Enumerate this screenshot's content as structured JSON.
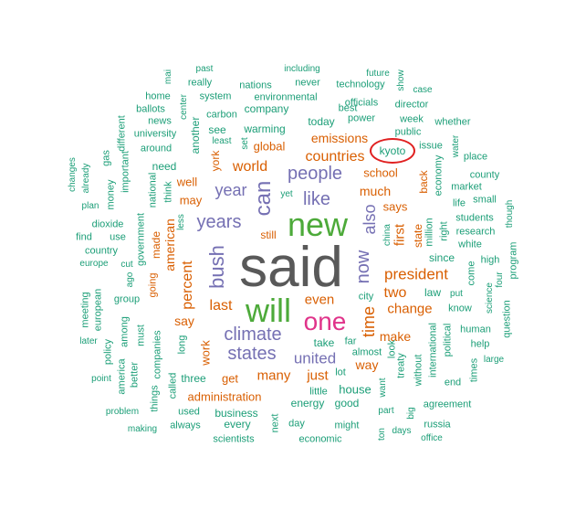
{
  "palette": {
    "gray": "#595959",
    "green": "#4daa3a",
    "magenta": "#e0338a",
    "purple": "#7570b3",
    "orange": "#d95f02",
    "teal": "#1b9e77"
  },
  "highlight": {
    "word": "kyoto",
    "color": "#e02020"
  },
  "words": [
    {
      "text": "said",
      "size": 62,
      "c": "gray"
    },
    {
      "text": "new",
      "size": 36,
      "c": "green"
    },
    {
      "text": "will",
      "size": 36,
      "c": "green"
    },
    {
      "text": "one",
      "size": 28,
      "c": "magenta"
    },
    {
      "text": "can",
      "size": 24,
      "c": "purple"
    },
    {
      "text": "bush",
      "size": 22,
      "c": "purple"
    },
    {
      "text": "years",
      "size": 20,
      "c": "purple"
    },
    {
      "text": "people",
      "size": 20,
      "c": "purple"
    },
    {
      "text": "like",
      "size": 20,
      "c": "purple"
    },
    {
      "text": "climate",
      "size": 20,
      "c": "purple"
    },
    {
      "text": "states",
      "size": 20,
      "c": "purple"
    },
    {
      "text": "now",
      "size": 20,
      "c": "purple"
    },
    {
      "text": "also",
      "size": 18,
      "c": "purple"
    },
    {
      "text": "year",
      "size": 18,
      "c": "purple"
    },
    {
      "text": "united",
      "size": 17,
      "c": "purple"
    },
    {
      "text": "time",
      "size": 18,
      "c": "orange"
    },
    {
      "text": "president",
      "size": 17,
      "c": "orange"
    },
    {
      "text": "countries",
      "size": 16,
      "c": "orange"
    },
    {
      "text": "world",
      "size": 16,
      "c": "orange"
    },
    {
      "text": "percent",
      "size": 16,
      "c": "orange"
    },
    {
      "text": "american",
      "size": 14,
      "c": "orange"
    },
    {
      "text": "last",
      "size": 16,
      "c": "orange"
    },
    {
      "text": "two",
      "size": 16,
      "c": "orange"
    },
    {
      "text": "change",
      "size": 15,
      "c": "orange"
    },
    {
      "text": "many",
      "size": 15,
      "c": "orange"
    },
    {
      "text": "just",
      "size": 15,
      "c": "orange"
    },
    {
      "text": "even",
      "size": 15,
      "c": "orange"
    },
    {
      "text": "first",
      "size": 15,
      "c": "orange"
    },
    {
      "text": "much",
      "size": 14,
      "c": "orange"
    },
    {
      "text": "emissions",
      "size": 14,
      "c": "orange"
    },
    {
      "text": "say",
      "size": 14,
      "c": "orange"
    },
    {
      "text": "make",
      "size": 14,
      "c": "orange"
    },
    {
      "text": "way",
      "size": 14,
      "c": "orange"
    },
    {
      "text": "says",
      "size": 13,
      "c": "orange"
    },
    {
      "text": "well",
      "size": 13,
      "c": "orange"
    },
    {
      "text": "may",
      "size": 13,
      "c": "orange"
    },
    {
      "text": "get",
      "size": 13,
      "c": "orange"
    },
    {
      "text": "work",
      "size": 13,
      "c": "orange"
    },
    {
      "text": "administration",
      "size": 13,
      "c": "orange"
    },
    {
      "text": "school",
      "size": 13,
      "c": "orange"
    },
    {
      "text": "global",
      "size": 13,
      "c": "orange"
    },
    {
      "text": "still",
      "size": 12,
      "c": "orange"
    },
    {
      "text": "back",
      "size": 12,
      "c": "orange"
    },
    {
      "text": "state",
      "size": 12,
      "c": "orange"
    },
    {
      "text": "york",
      "size": 12,
      "c": "orange"
    },
    {
      "text": "made",
      "size": 12,
      "c": "orange"
    },
    {
      "text": "going",
      "size": 11,
      "c": "orange"
    },
    {
      "text": "kyoto",
      "size": 12,
      "c": "teal"
    },
    {
      "text": "warming",
      "size": 12,
      "c": "teal"
    },
    {
      "text": "company",
      "size": 12,
      "c": "teal"
    },
    {
      "text": "today",
      "size": 12,
      "c": "teal"
    },
    {
      "text": "energy",
      "size": 12,
      "c": "teal"
    },
    {
      "text": "house",
      "size": 13,
      "c": "teal"
    },
    {
      "text": "three",
      "size": 12,
      "c": "teal"
    },
    {
      "text": "business",
      "size": 12,
      "c": "teal"
    },
    {
      "text": "every",
      "size": 12,
      "c": "teal"
    },
    {
      "text": "good",
      "size": 12,
      "c": "teal"
    },
    {
      "text": "see",
      "size": 12,
      "c": "teal"
    },
    {
      "text": "need",
      "size": 12,
      "c": "teal"
    },
    {
      "text": "take",
      "size": 12,
      "c": "teal"
    },
    {
      "text": "law",
      "size": 12,
      "c": "teal"
    },
    {
      "text": "since",
      "size": 12,
      "c": "teal"
    },
    {
      "text": "far",
      "size": 11,
      "c": "teal"
    },
    {
      "text": "almost",
      "size": 11,
      "c": "teal"
    },
    {
      "text": "lot",
      "size": 11,
      "c": "teal"
    },
    {
      "text": "little",
      "size": 11,
      "c": "teal"
    },
    {
      "text": "might",
      "size": 11,
      "c": "teal"
    },
    {
      "text": "day",
      "size": 11,
      "c": "teal"
    },
    {
      "text": "economic",
      "size": 11,
      "c": "teal"
    },
    {
      "text": "scientists",
      "size": 11,
      "c": "teal"
    },
    {
      "text": "always",
      "size": 11,
      "c": "teal"
    },
    {
      "text": "used",
      "size": 11,
      "c": "teal"
    },
    {
      "text": "agreement",
      "size": 11,
      "c": "teal"
    },
    {
      "text": "russia",
      "size": 11,
      "c": "teal"
    },
    {
      "text": "office",
      "size": 10,
      "c": "teal"
    },
    {
      "text": "days",
      "size": 10,
      "c": "teal"
    },
    {
      "text": "part",
      "size": 10,
      "c": "teal"
    },
    {
      "text": "end",
      "size": 11,
      "c": "teal"
    },
    {
      "text": "know",
      "size": 11,
      "c": "teal"
    },
    {
      "text": "put",
      "size": 10,
      "c": "teal"
    },
    {
      "text": "human",
      "size": 11,
      "c": "teal"
    },
    {
      "text": "help",
      "size": 11,
      "c": "teal"
    },
    {
      "text": "large",
      "size": 10,
      "c": "teal"
    },
    {
      "text": "high",
      "size": 11,
      "c": "teal"
    },
    {
      "text": "research",
      "size": 11,
      "c": "teal"
    },
    {
      "text": "white",
      "size": 11,
      "c": "teal"
    },
    {
      "text": "students",
      "size": 11,
      "c": "teal"
    },
    {
      "text": "small",
      "size": 11,
      "c": "teal"
    },
    {
      "text": "life",
      "size": 11,
      "c": "teal"
    },
    {
      "text": "market",
      "size": 11,
      "c": "teal"
    },
    {
      "text": "county",
      "size": 11,
      "c": "teal"
    },
    {
      "text": "place",
      "size": 11,
      "c": "teal"
    },
    {
      "text": "issue",
      "size": 11,
      "c": "teal"
    },
    {
      "text": "public",
      "size": 11,
      "c": "teal"
    },
    {
      "text": "week",
      "size": 11,
      "c": "teal"
    },
    {
      "text": "whether",
      "size": 11,
      "c": "teal"
    },
    {
      "text": "director",
      "size": 11,
      "c": "teal"
    },
    {
      "text": "officials",
      "size": 11,
      "c": "teal"
    },
    {
      "text": "case",
      "size": 10,
      "c": "teal"
    },
    {
      "text": "technology",
      "size": 11,
      "c": "teal"
    },
    {
      "text": "future",
      "size": 10,
      "c": "teal"
    },
    {
      "text": "never",
      "size": 11,
      "c": "teal"
    },
    {
      "text": "best",
      "size": 11,
      "c": "teal"
    },
    {
      "text": "power",
      "size": 11,
      "c": "teal"
    },
    {
      "text": "including",
      "size": 10,
      "c": "teal"
    },
    {
      "text": "nations",
      "size": 11,
      "c": "teal"
    },
    {
      "text": "environmental",
      "size": 11,
      "c": "teal"
    },
    {
      "text": "past",
      "size": 10,
      "c": "teal"
    },
    {
      "text": "really",
      "size": 11,
      "c": "teal"
    },
    {
      "text": "system",
      "size": 11,
      "c": "teal"
    },
    {
      "text": "carbon",
      "size": 11,
      "c": "teal"
    },
    {
      "text": "home",
      "size": 11,
      "c": "teal"
    },
    {
      "text": "ballots",
      "size": 11,
      "c": "teal"
    },
    {
      "text": "news",
      "size": 11,
      "c": "teal"
    },
    {
      "text": "university",
      "size": 11,
      "c": "teal"
    },
    {
      "text": "around",
      "size": 11,
      "c": "teal"
    },
    {
      "text": "least",
      "size": 10,
      "c": "teal"
    },
    {
      "text": "yet",
      "size": 10,
      "c": "teal"
    },
    {
      "text": "dioxide",
      "size": 11,
      "c": "teal"
    },
    {
      "text": "find",
      "size": 11,
      "c": "teal"
    },
    {
      "text": "use",
      "size": 11,
      "c": "teal"
    },
    {
      "text": "country",
      "size": 11,
      "c": "teal"
    },
    {
      "text": "europe",
      "size": 10,
      "c": "teal"
    },
    {
      "text": "cut",
      "size": 10,
      "c": "teal"
    },
    {
      "text": "group",
      "size": 11,
      "c": "teal"
    },
    {
      "text": "plan",
      "size": 10,
      "c": "teal"
    },
    {
      "text": "later",
      "size": 10,
      "c": "teal"
    },
    {
      "text": "point",
      "size": 10,
      "c": "teal"
    },
    {
      "text": "problem",
      "size": 10,
      "c": "teal"
    },
    {
      "text": "making",
      "size": 10,
      "c": "teal"
    },
    {
      "text": "city",
      "size": 11,
      "c": "teal"
    },
    {
      "text": "another",
      "size": 12,
      "c": "teal"
    },
    {
      "text": "center",
      "size": 10,
      "c": "teal"
    },
    {
      "text": "set",
      "size": 10,
      "c": "teal"
    },
    {
      "text": "think",
      "size": 11,
      "c": "teal"
    },
    {
      "text": "national",
      "size": 11,
      "c": "teal"
    },
    {
      "text": "less",
      "size": 10,
      "c": "teal"
    },
    {
      "text": "government",
      "size": 11,
      "c": "teal"
    },
    {
      "text": "ago",
      "size": 10,
      "c": "teal"
    },
    {
      "text": "must",
      "size": 11,
      "c": "teal"
    },
    {
      "text": "among",
      "size": 11,
      "c": "teal"
    },
    {
      "text": "money",
      "size": 11,
      "c": "teal"
    },
    {
      "text": "important",
      "size": 11,
      "c": "teal"
    },
    {
      "text": "gas",
      "size": 11,
      "c": "teal"
    },
    {
      "text": "different",
      "size": 11,
      "c": "teal"
    },
    {
      "text": "already",
      "size": 10,
      "c": "teal"
    },
    {
      "text": "changes",
      "size": 10,
      "c": "teal"
    },
    {
      "text": "european",
      "size": 11,
      "c": "teal"
    },
    {
      "text": "meeting",
      "size": 11,
      "c": "teal"
    },
    {
      "text": "policy",
      "size": 11,
      "c": "teal"
    },
    {
      "text": "america",
      "size": 11,
      "c": "teal"
    },
    {
      "text": "better",
      "size": 11,
      "c": "teal"
    },
    {
      "text": "companies",
      "size": 11,
      "c": "teal"
    },
    {
      "text": "long",
      "size": 11,
      "c": "teal"
    },
    {
      "text": "called",
      "size": 11,
      "c": "teal"
    },
    {
      "text": "things",
      "size": 11,
      "c": "teal"
    },
    {
      "text": "next",
      "size": 11,
      "c": "teal"
    },
    {
      "text": "want",
      "size": 10,
      "c": "teal"
    },
    {
      "text": "treaty",
      "size": 11,
      "c": "teal"
    },
    {
      "text": "look",
      "size": 11,
      "c": "teal"
    },
    {
      "text": "without",
      "size": 11,
      "c": "teal"
    },
    {
      "text": "big",
      "size": 10,
      "c": "teal"
    },
    {
      "text": "international",
      "size": 11,
      "c": "teal"
    },
    {
      "text": "political",
      "size": 11,
      "c": "teal"
    },
    {
      "text": "china",
      "size": 10,
      "c": "teal"
    },
    {
      "text": "million",
      "size": 11,
      "c": "teal"
    },
    {
      "text": "right",
      "size": 11,
      "c": "teal"
    },
    {
      "text": "economy",
      "size": 11,
      "c": "teal"
    },
    {
      "text": "water",
      "size": 10,
      "c": "teal"
    },
    {
      "text": "come",
      "size": 11,
      "c": "teal"
    },
    {
      "text": "four",
      "size": 10,
      "c": "teal"
    },
    {
      "text": "science",
      "size": 10,
      "c": "teal"
    },
    {
      "text": "question",
      "size": 11,
      "c": "teal"
    },
    {
      "text": "program",
      "size": 11,
      "c": "teal"
    },
    {
      "text": "though",
      "size": 10,
      "c": "teal"
    },
    {
      "text": "times",
      "size": 11,
      "c": "teal"
    },
    {
      "text": "show",
      "size": 10,
      "c": "teal"
    },
    {
      "text": "ton",
      "size": 10,
      "c": "teal"
    },
    {
      "text": "mai",
      "size": 10,
      "c": "teal"
    }
  ]
}
